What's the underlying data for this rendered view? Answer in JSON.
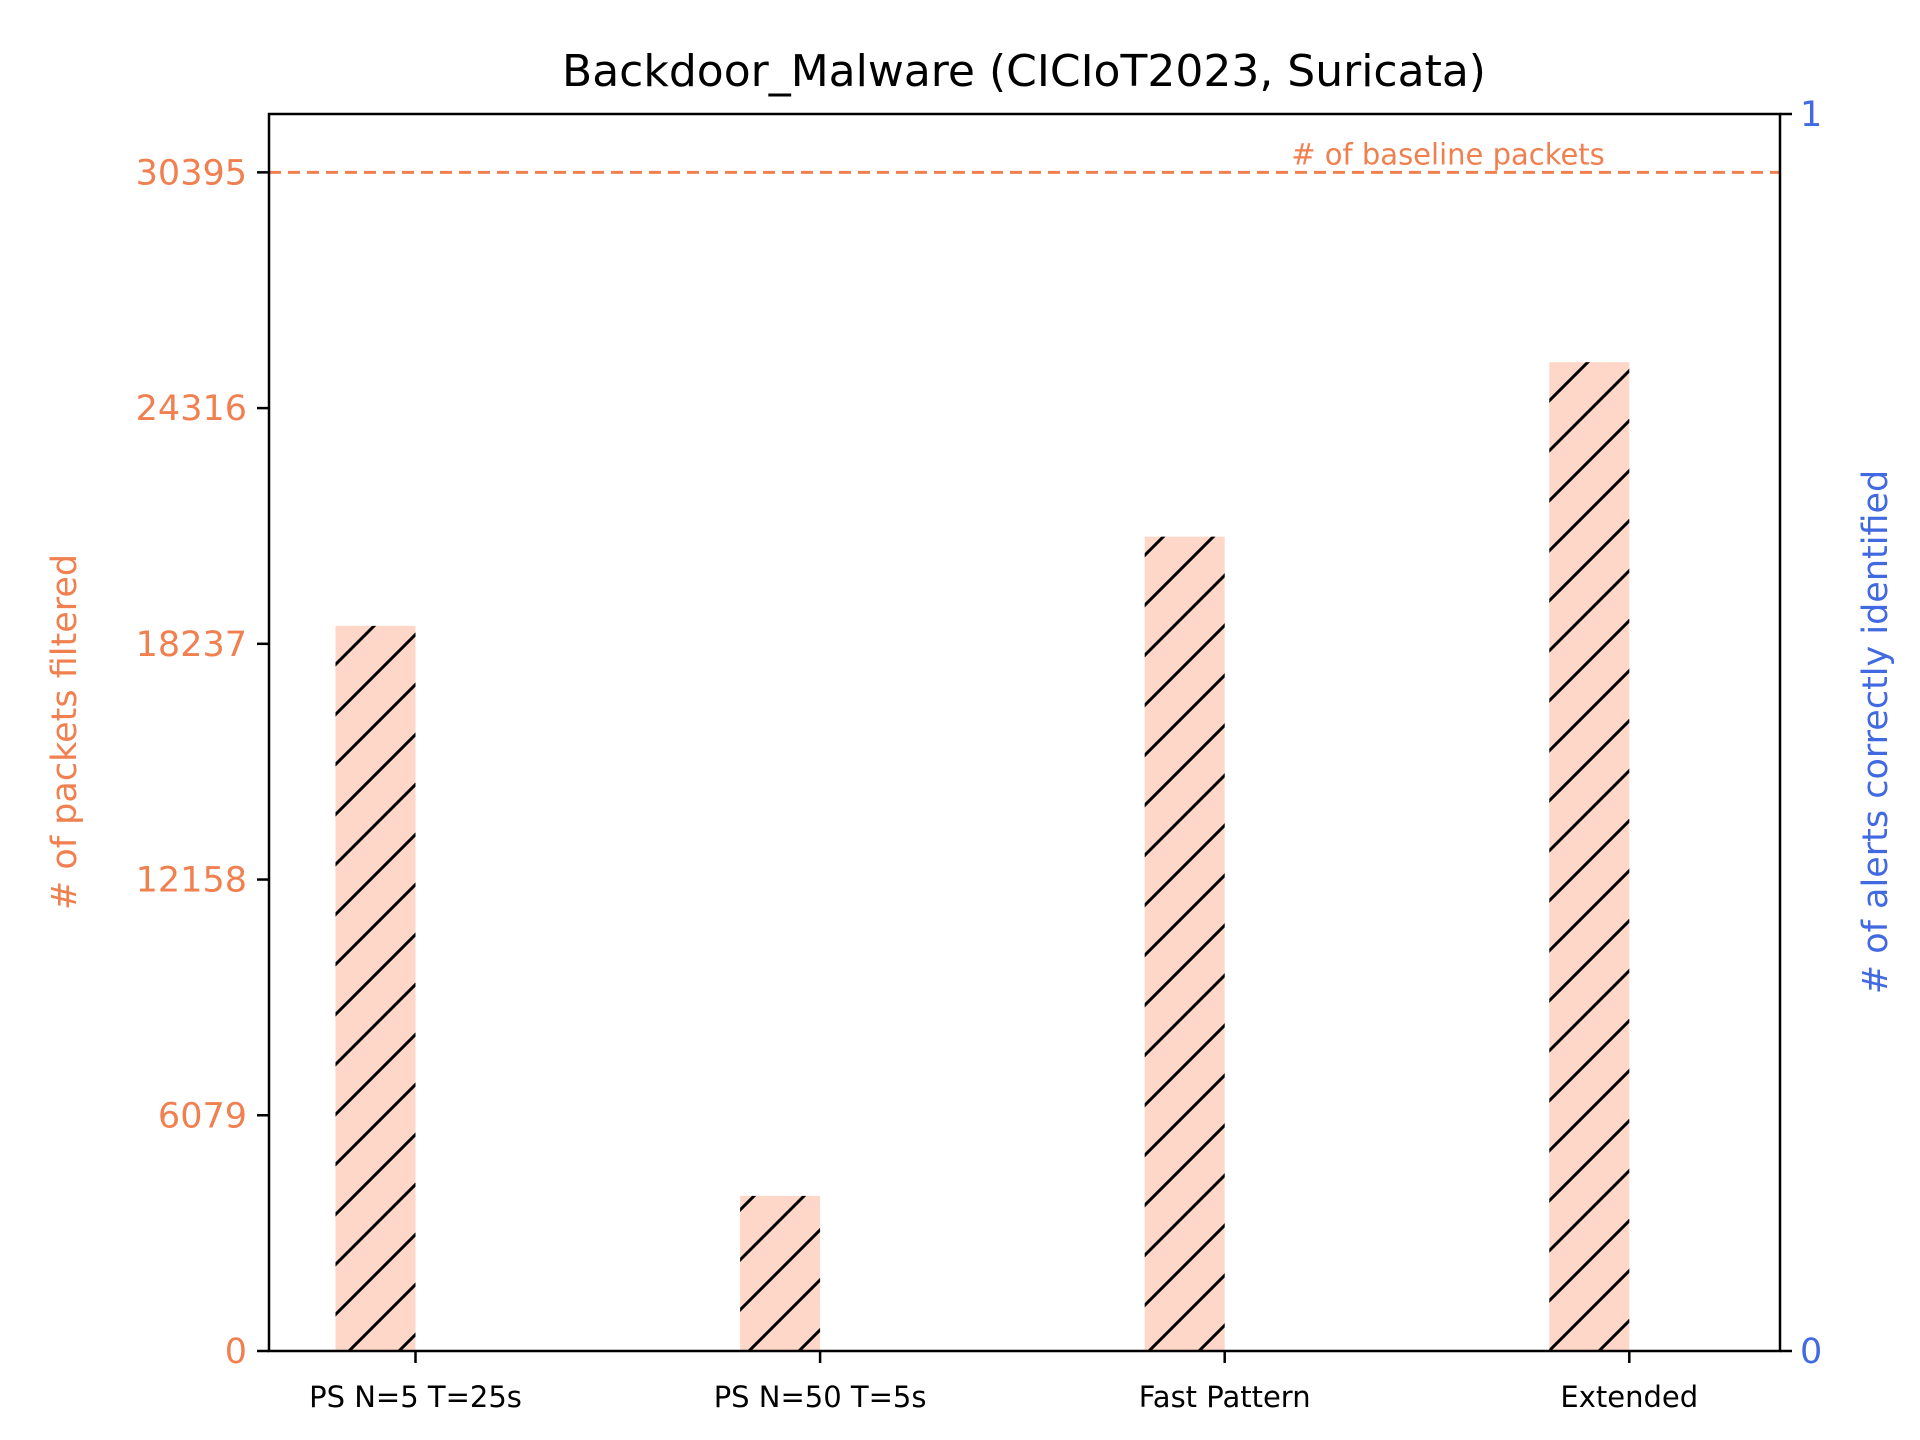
{
  "colors": {
    "left_axis": "#f08050",
    "right_axis": "#4169e1",
    "bar_fill": "#ffd7c8",
    "hatch": "#000000",
    "baseline_line": "#f08050"
  },
  "chart_data": {
    "type": "bar",
    "title": "Backdoor_Malware (CICIoT2023, Suricata)",
    "categories": [
      "PS N=5 T=25s",
      "PS N=50 T=5s",
      "Fast Pattern",
      "Extended"
    ],
    "series": [
      {
        "values": [
          18700,
          4000,
          21000,
          25500
        ],
        "hatch": "//"
      }
    ],
    "ylabel": "# of packets filtered",
    "y2label": "# of alerts correctly identified",
    "ylim": [
      0,
      31900
    ],
    "yticks": [
      "0",
      "6079",
      "12158",
      "18237",
      "24316",
      "30395"
    ],
    "y2lim": [
      0,
      1
    ],
    "y2ticks": [
      "0",
      "1"
    ],
    "baseline": {
      "value": 30395,
      "label": "# of baseline packets",
      "style": "dashed"
    },
    "grid": false
  }
}
